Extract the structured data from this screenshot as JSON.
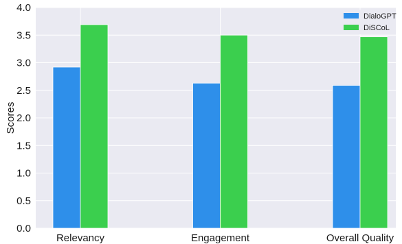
{
  "chart_data": {
    "type": "bar",
    "categories": [
      "Relevancy",
      "Engagement",
      "Overall Quality"
    ],
    "series": [
      {
        "name": "DialoGPT",
        "values": [
          2.92,
          2.63,
          2.59
        ],
        "color": "#2e8fea"
      },
      {
        "name": "DiSCoL",
        "values": [
          3.69,
          3.5,
          3.47
        ],
        "color": "#3bcf4e"
      }
    ],
    "ylabel": "Scores",
    "xlabel": "",
    "ylim": [
      0,
      4.0
    ],
    "yticks": [
      "0.0",
      "0.5",
      "1.0",
      "1.5",
      "2.0",
      "2.5",
      "3.0",
      "3.5",
      "4.0"
    ],
    "grid": true,
    "legend_position": "top-right",
    "plot_background": "#eaeaf2"
  }
}
